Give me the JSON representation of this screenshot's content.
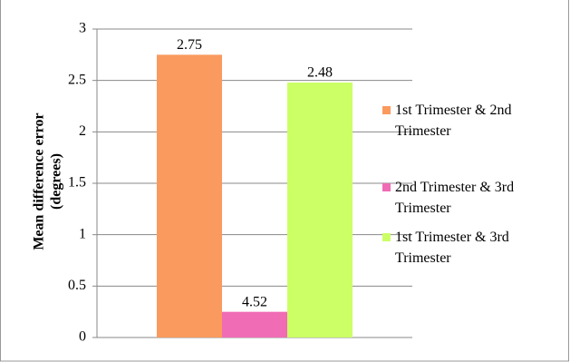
{
  "chart_data": {
    "type": "bar",
    "y_label": "Mean difference error",
    "y_label_unit": "(degrees)",
    "categories": [
      null
    ],
    "series": [
      {
        "name": "1st Trimester & 2nd Trimester",
        "color": "#fa9a5e",
        "values": [
          2.75
        ]
      },
      {
        "name": "2nd Trimester & 3rd Trimester",
        "color": "#f06cb4",
        "values": [
          0.25
        ]
      },
      {
        "name": "1st Trimester & 3rd Trimester",
        "color": "#ccff66",
        "values": [
          2.48
        ]
      }
    ],
    "annotations": [
      {
        "text": "4.52"
      }
    ],
    "ylim": [
      0,
      3
    ],
    "yticks": [
      0,
      0.5,
      1,
      1.5,
      2,
      2.5,
      3
    ],
    "grid": true,
    "legend": "right"
  }
}
